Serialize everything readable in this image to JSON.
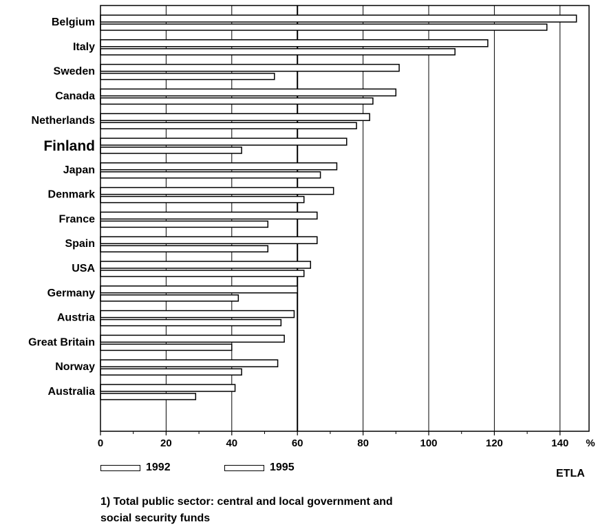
{
  "chart_data": {
    "type": "bar",
    "orientation": "horizontal",
    "categories": [
      "Belgium",
      "Italy",
      "Sweden",
      "Canada",
      "Netherlands",
      "Finland",
      "Japan",
      "Denmark",
      "France",
      "Spain",
      "USA",
      "Germany",
      "Austria",
      "Great Britain",
      "Norway",
      "Australia"
    ],
    "series": [
      {
        "name": "1992",
        "values": [
          145,
          118,
          91,
          90,
          82,
          75,
          72,
          71,
          66,
          66,
          64,
          60,
          59,
          56,
          54,
          41
        ]
      },
      {
        "name": "1995",
        "values": [
          136,
          108,
          53,
          83,
          78,
          43,
          67,
          62,
          51,
          51,
          62,
          42,
          55,
          40,
          43,
          29
        ]
      }
    ],
    "xticks": [
      "0",
      "20",
      "40",
      "60",
      "80",
      "100",
      "120",
      "140"
    ],
    "xunit": "%",
    "xlim": [
      0,
      150
    ],
    "reference_line": 60,
    "emphasized_category": "Finland",
    "grid": "vertical"
  },
  "legend": {
    "label_1992": "1992",
    "label_1995": "1995"
  },
  "source": "ETLA",
  "footnote": {
    "line1": "1)  Total public sector: central and local government and",
    "line2": "social security funds"
  }
}
